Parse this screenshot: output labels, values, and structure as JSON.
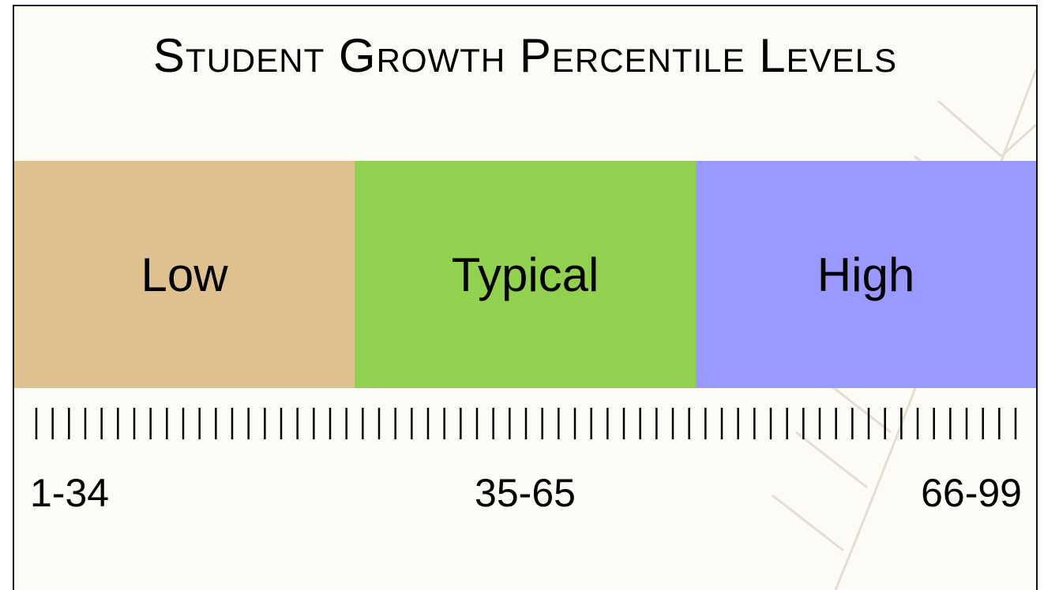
{
  "title": "Student Growth Percentile Levels",
  "levels": [
    {
      "label": "Low",
      "range": "1-34",
      "color": "#dfc18f"
    },
    {
      "label": "Typical",
      "range": "35-65",
      "color": "#92d050"
    },
    {
      "label": "High",
      "range": "66-99",
      "color": "#9999ff"
    }
  ]
}
